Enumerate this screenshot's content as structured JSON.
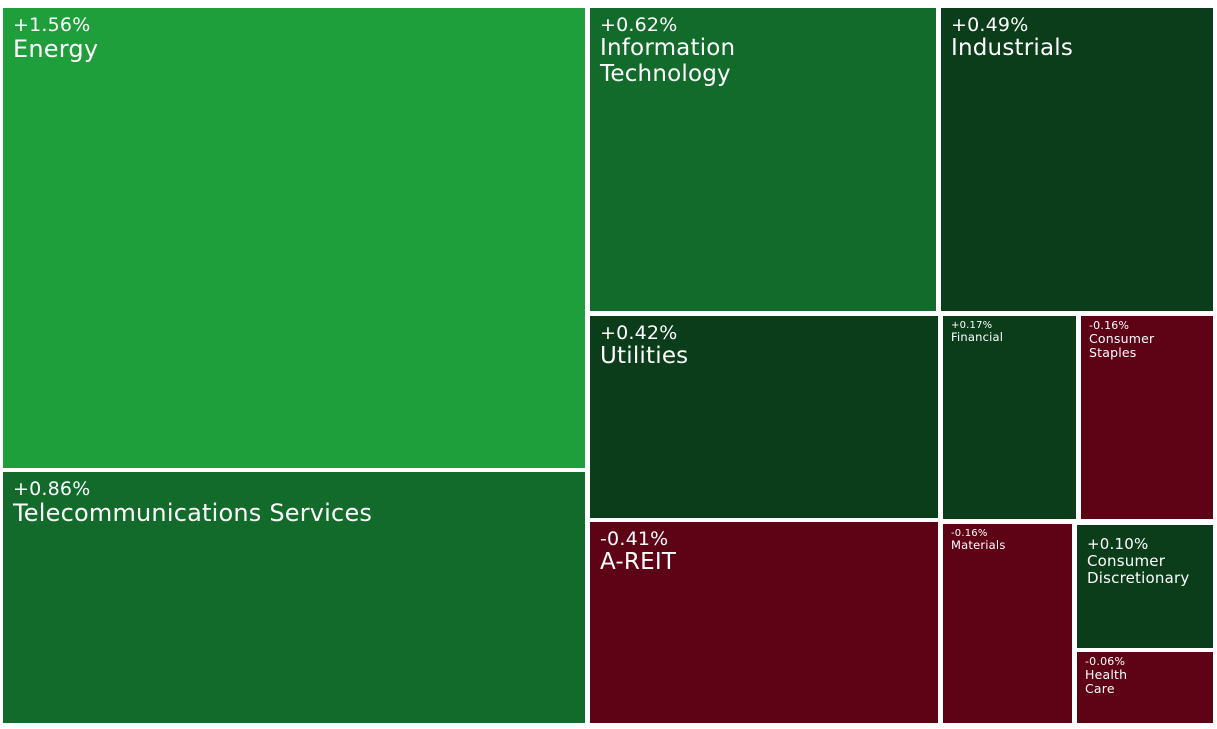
{
  "chart_data": {
    "type": "treemap",
    "colors": {
      "strong_gain": "#1f9e3c",
      "moderate_gain": "#126b2b",
      "small_gain": "#0b3d1b",
      "loss": "#5e0316",
      "border": "#ffffff"
    },
    "sectors": [
      {
        "name": "Energy",
        "change": "+1.56%",
        "value": 1.56,
        "color": "#1f9e3c"
      },
      {
        "name": "Telecommunications Services",
        "change": "+0.86%",
        "value": 0.86,
        "color": "#126b2b"
      },
      {
        "name": "Information\nTechnology",
        "change": "+0.62%",
        "value": 0.62,
        "color": "#126b2b"
      },
      {
        "name": "Industrials",
        "change": "+0.49%",
        "value": 0.49,
        "color": "#0b3d1b"
      },
      {
        "name": "Utilities",
        "change": "+0.42%",
        "value": 0.42,
        "color": "#0b3d1b"
      },
      {
        "name": "A-REIT",
        "change": "-0.41%",
        "value": -0.41,
        "color": "#5e0316"
      },
      {
        "name": "Financial",
        "change": "+0.17%",
        "value": 0.17,
        "color": "#0b3d1b"
      },
      {
        "name": "Consumer\nStaples",
        "change": "-0.16%",
        "value": -0.16,
        "color": "#5e0316"
      },
      {
        "name": "Materials",
        "change": "-0.16%",
        "value": -0.16,
        "color": "#5e0316"
      },
      {
        "name": "Consumer\nDiscretionary",
        "change": "+0.10%",
        "value": 0.1,
        "color": "#0b3d1b"
      },
      {
        "name": "Health\nCare",
        "change": "-0.06%",
        "value": -0.06,
        "color": "#5e0316"
      }
    ]
  }
}
